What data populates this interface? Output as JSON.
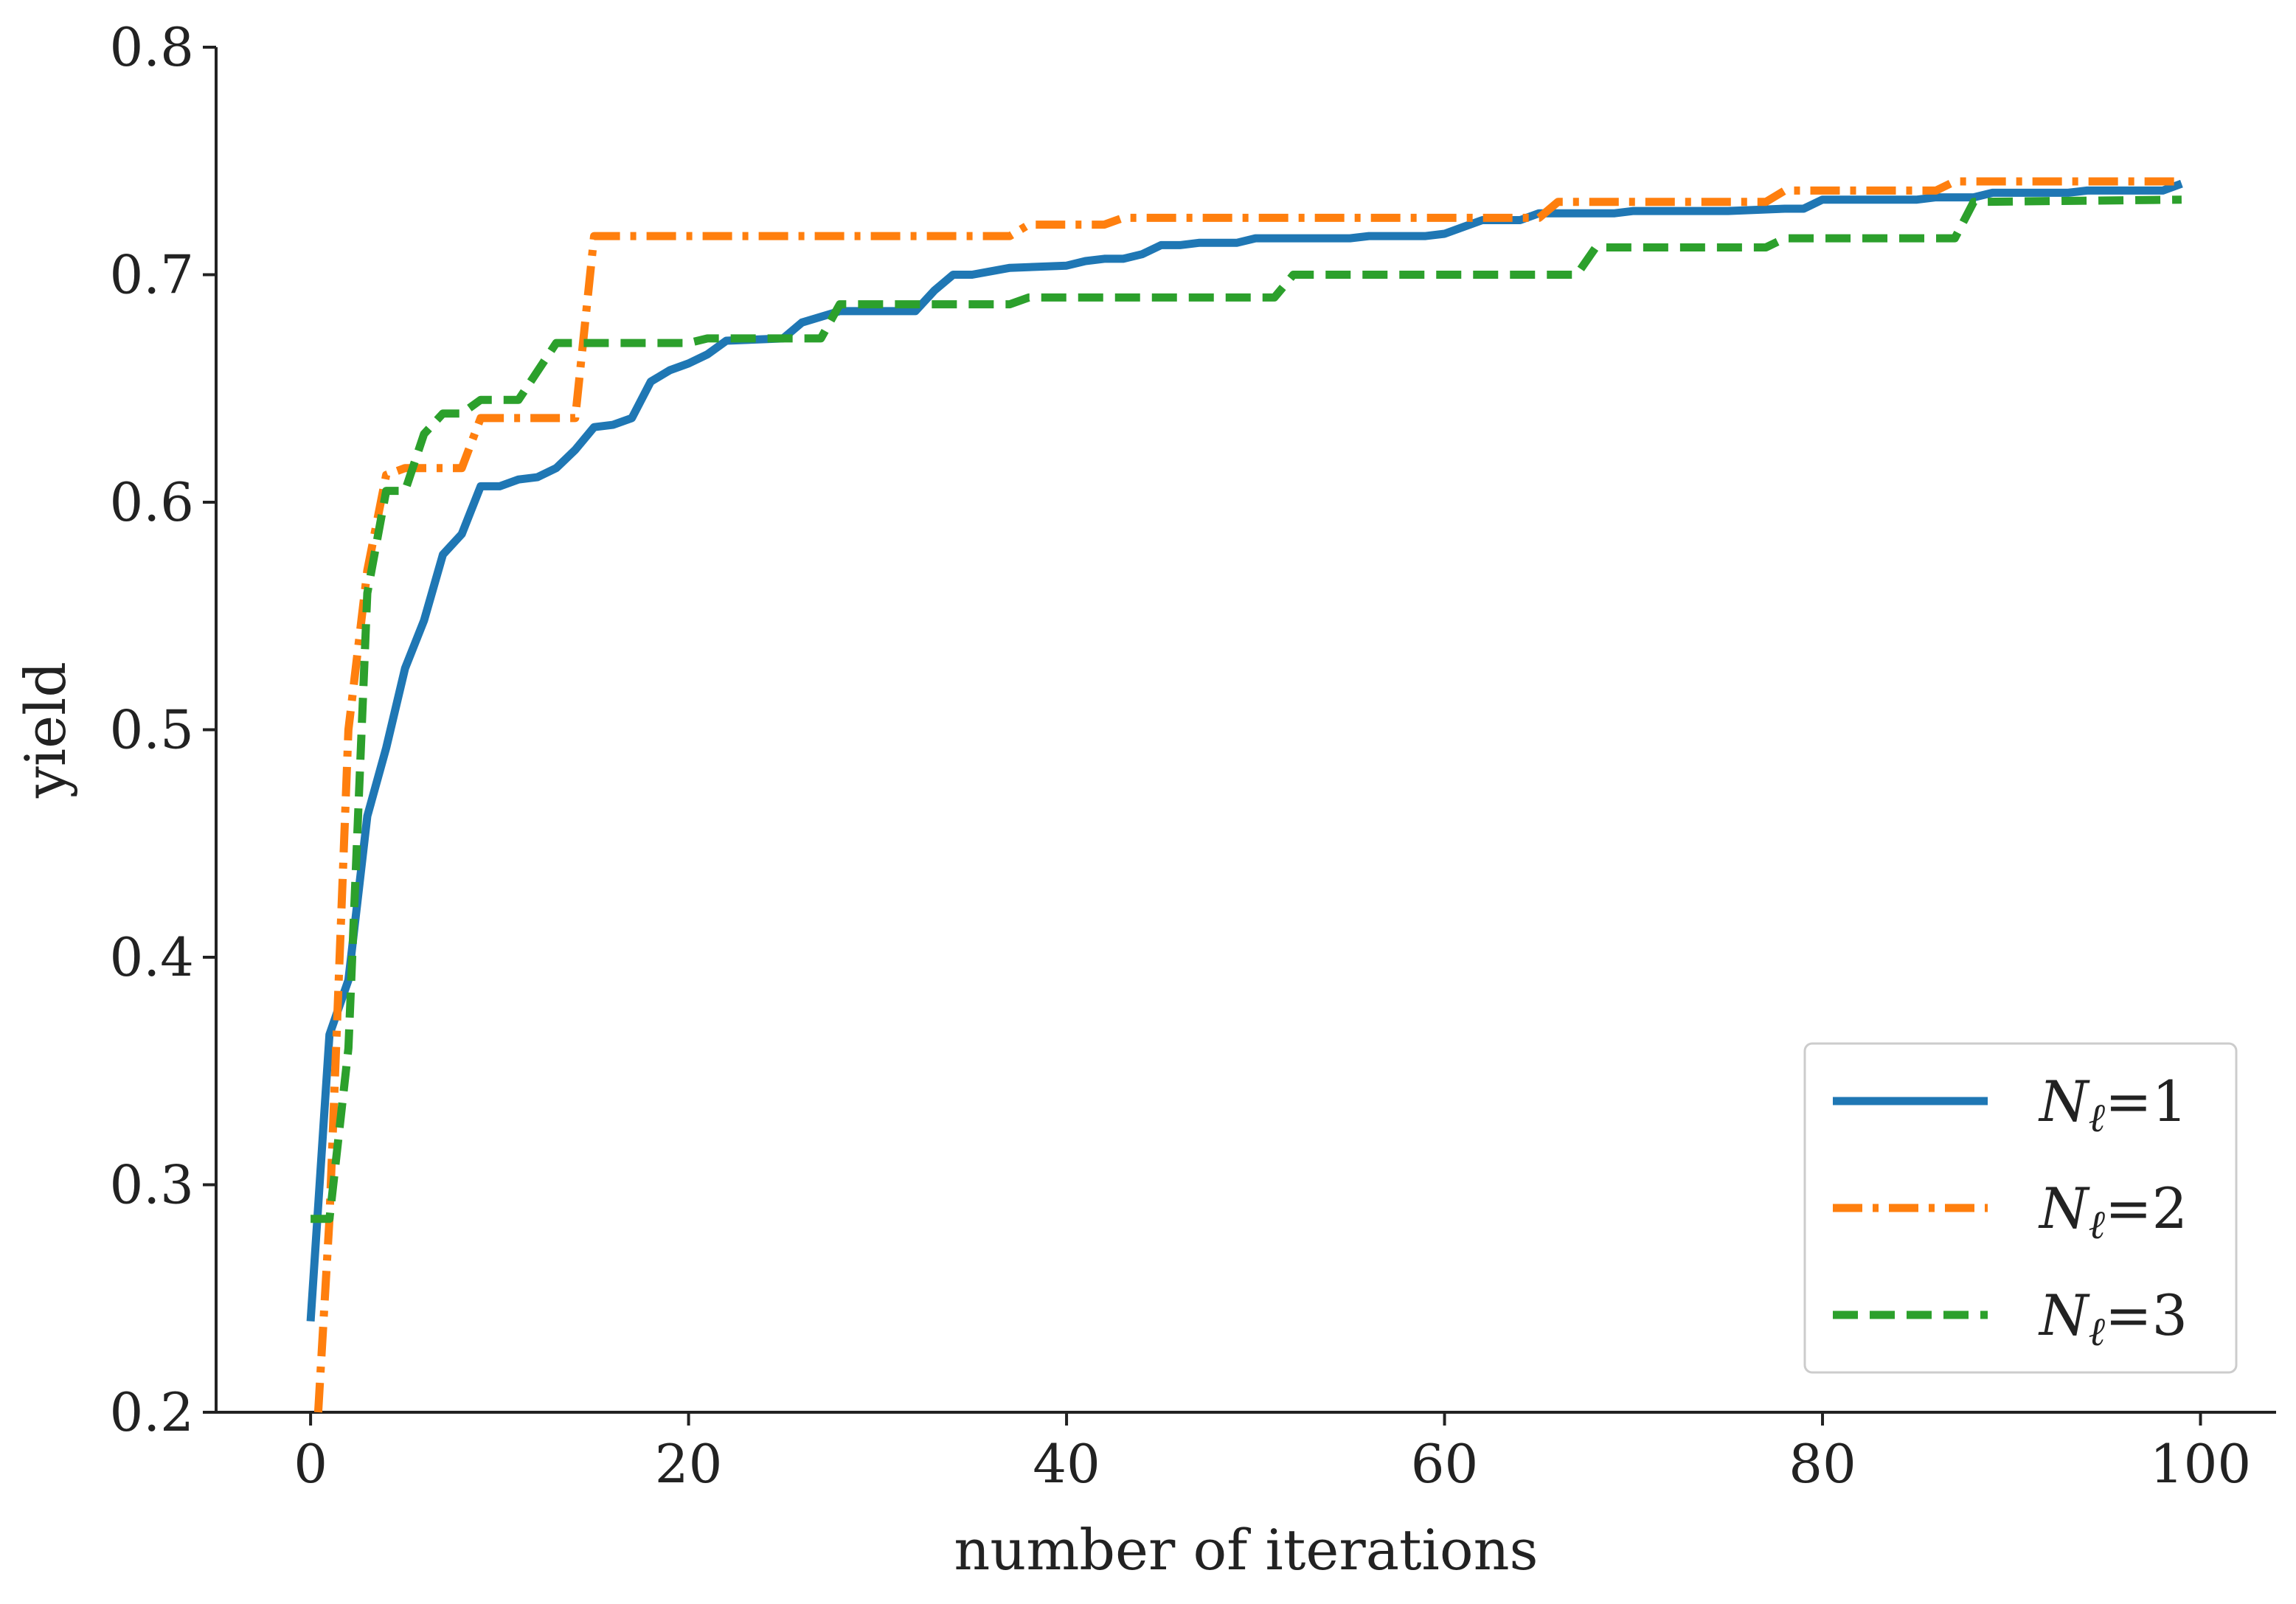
{
  "chart_data": {
    "type": "line",
    "xlabel": "number of iterations",
    "ylabel": "yield",
    "xlim": [
      -5,
      104
    ],
    "ylim": [
      0.2,
      0.8
    ],
    "xticks": [
      0,
      20,
      40,
      60,
      80,
      100
    ],
    "yticks": [
      0.2,
      0.3,
      0.4,
      0.5,
      0.6,
      0.7,
      0.8
    ],
    "xtick_labels": [
      "0",
      "20",
      "40",
      "60",
      "80",
      "100"
    ],
    "ytick_labels": [
      "0.2",
      "0.3",
      "0.4",
      "0.5",
      "0.6",
      "0.7",
      "0.8"
    ],
    "grid": false,
    "legend_position": "lower-right",
    "series": [
      {
        "name": "Nℓ=1",
        "label_main": "N",
        "label_sub": "ℓ",
        "label_tail": "=1",
        "color": "#1f77b4",
        "dash": "solid",
        "x": [
          0,
          1,
          2,
          3,
          4,
          5,
          6,
          7,
          8,
          9,
          10,
          11,
          12,
          13,
          14,
          15,
          16,
          17,
          18,
          19,
          20,
          21,
          22,
          25,
          26,
          28,
          32,
          33,
          34,
          35,
          37,
          40,
          41,
          42,
          43,
          44,
          45,
          46,
          47,
          49,
          50,
          55,
          56,
          59,
          60,
          61,
          62,
          64,
          65,
          66,
          69,
          70,
          75,
          78,
          79,
          80,
          85,
          86,
          88,
          89,
          93,
          94,
          98,
          99
        ],
        "y": [
          0.24,
          0.366,
          0.39,
          0.462,
          0.492,
          0.527,
          0.548,
          0.577,
          0.586,
          0.607,
          0.607,
          0.61,
          0.611,
          0.615,
          0.623,
          0.633,
          0.634,
          0.637,
          0.653,
          0.658,
          0.661,
          0.665,
          0.671,
          0.672,
          0.679,
          0.684,
          0.684,
          0.693,
          0.7,
          0.7,
          0.703,
          0.704,
          0.706,
          0.707,
          0.707,
          0.709,
          0.713,
          0.713,
          0.714,
          0.714,
          0.716,
          0.716,
          0.717,
          0.717,
          0.718,
          0.721,
          0.724,
          0.724,
          0.727,
          0.727,
          0.727,
          0.728,
          0.728,
          0.729,
          0.729,
          0.733,
          0.733,
          0.734,
          0.734,
          0.736,
          0.736,
          0.737,
          0.737,
          0.74
        ]
      },
      {
        "name": "Nℓ=2",
        "label_main": "N",
        "label_sub": "ℓ",
        "label_tail": "=2",
        "color": "#ff7f0e",
        "dash": "dashdot",
        "x": [
          0.4,
          1,
          2,
          3,
          4,
          5,
          8,
          9,
          14,
          15,
          37,
          38,
          42,
          43,
          65,
          66,
          77,
          78,
          86,
          87,
          99
        ],
        "y": [
          0.2,
          0.285,
          0.5,
          0.57,
          0.612,
          0.615,
          0.615,
          0.637,
          0.637,
          0.717,
          0.717,
          0.722,
          0.722,
          0.725,
          0.725,
          0.732,
          0.732,
          0.737,
          0.737,
          0.741,
          0.741
        ]
      },
      {
        "name": "Nℓ=3",
        "label_main": "N",
        "label_sub": "ℓ",
        "label_tail": "=3",
        "color": "#2ca02c",
        "dash": "dashed",
        "x": [
          0,
          1,
          2,
          3,
          4,
          5,
          6,
          7,
          8,
          9,
          11,
          13,
          20,
          21,
          27,
          28,
          37,
          38,
          51,
          52,
          67,
          68,
          77,
          78,
          87,
          88,
          99
        ],
        "y": [
          0.285,
          0.285,
          0.36,
          0.56,
          0.605,
          0.605,
          0.63,
          0.639,
          0.639,
          0.645,
          0.645,
          0.67,
          0.67,
          0.672,
          0.672,
          0.687,
          0.687,
          0.69,
          0.69,
          0.7,
          0.7,
          0.712,
          0.712,
          0.716,
          0.716,
          0.732,
          0.733
        ]
      }
    ]
  }
}
